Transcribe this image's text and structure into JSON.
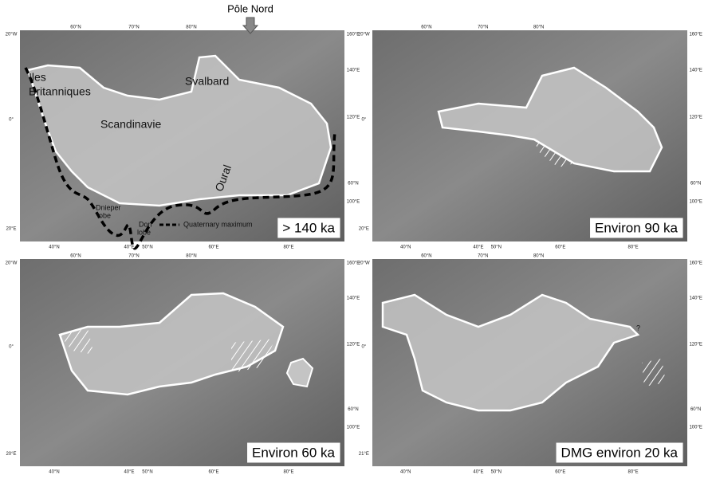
{
  "header": {
    "north_pole": "Pôle Nord"
  },
  "panels": [
    {
      "label": "> 140 ka",
      "regions": [
        "Iles",
        "Britanniques",
        "Svalbard",
        "Scandinavie",
        "Oural",
        "Dnieper",
        "lobe",
        "Don",
        "lobe",
        "Quaternary maximum"
      ],
      "graticule": [
        "60°N",
        "70°N",
        "80°N",
        "20°W",
        "0°",
        "20°E",
        "160°E",
        "140°E",
        "120°E",
        "60°N",
        "100°E",
        "40°N",
        "40°E",
        "50°N",
        "60°E",
        "80°E"
      ]
    },
    {
      "label": "Environ 90 ka",
      "graticule": [
        "60°N",
        "70°N",
        "80°N",
        "20°W",
        "0°",
        "20°E",
        "160°E",
        "140°E",
        "120°E",
        "60°N",
        "100°E",
        "40°N",
        "40°E",
        "50°N",
        "60°E",
        "80°E"
      ]
    },
    {
      "label": "Environ 60 ka",
      "graticule": [
        "60°N",
        "70°N",
        "80°N",
        "20°W",
        "0°",
        "20°E",
        "160°E",
        "140°E",
        "120°E",
        "60°N",
        "100°E",
        "40°N",
        "40°E",
        "50°N",
        "60°E",
        "80°E"
      ]
    },
    {
      "label": "DMG environ 20 ka",
      "regions": [
        "?"
      ],
      "graticule": [
        "60°N",
        "70°N",
        "80°N",
        "20°W",
        "0°",
        "21°E",
        "160°E",
        "140°E",
        "120°E",
        "60°N",
        "100°E",
        "40°N",
        "40°E",
        "50°N",
        "60°E",
        "80°E"
      ]
    }
  ]
}
